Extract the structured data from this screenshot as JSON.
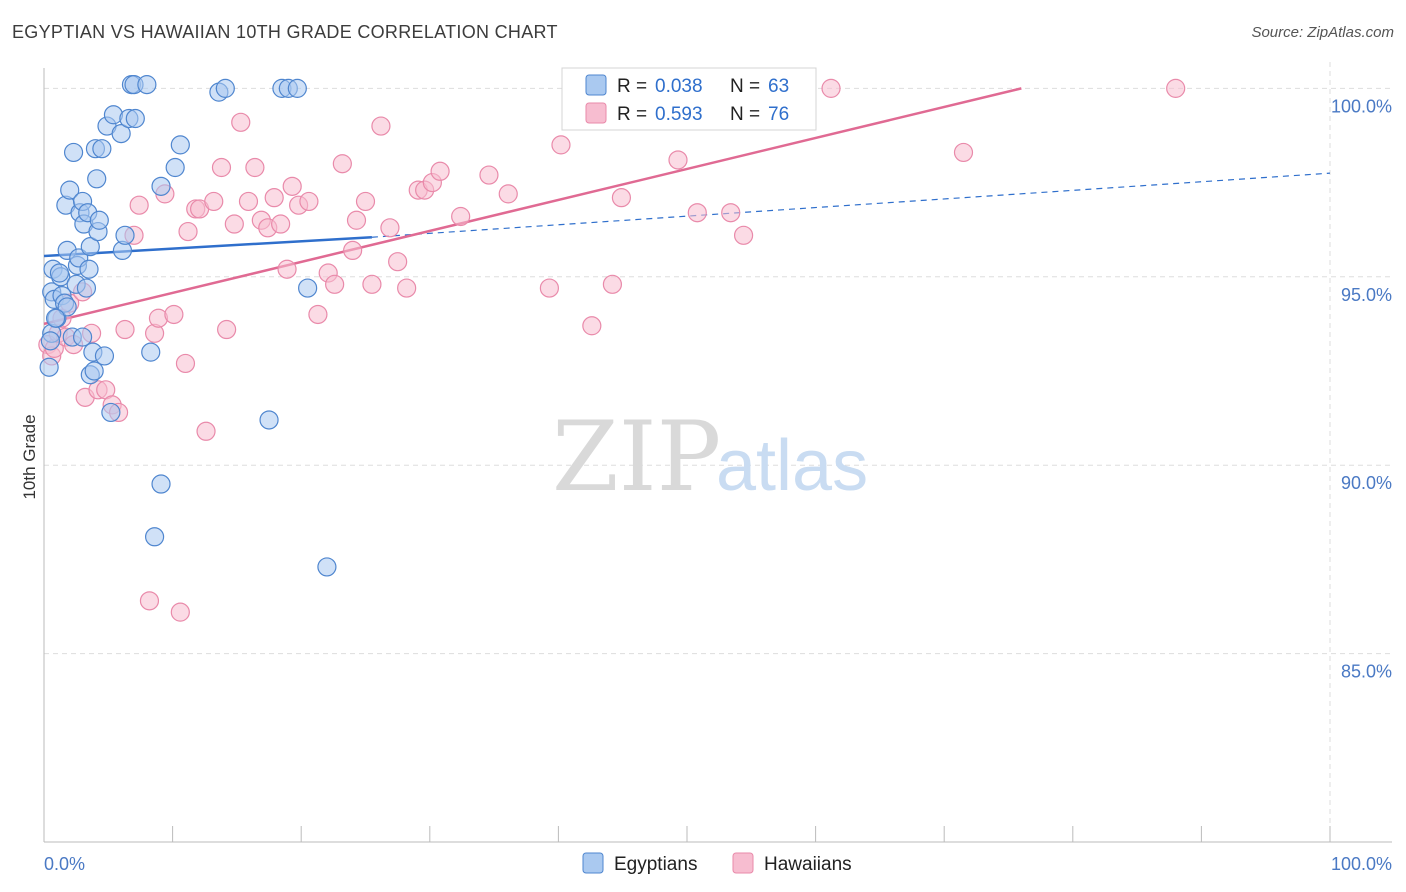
{
  "title": "EGYPTIAN VS HAWAIIAN 10TH GRADE CORRELATION CHART",
  "source": "Source: ZipAtlas.com",
  "watermark": {
    "zip": "ZIP",
    "atlas": "atlas"
  },
  "colors": {
    "egyptians_fill": "#aac9f0",
    "egyptians_stroke": "#4f86cf",
    "egyptians_line": "#2f6fcc",
    "hawaiians_fill": "#f7bdd0",
    "hawaiians_stroke": "#e98aaa",
    "hawaiians_line": "#e06a93",
    "grid": "#dddddd",
    "axis_label": "#4a79c4"
  },
  "legend": {
    "r_label": "R =",
    "n_label": "N =",
    "rows": [
      {
        "series": "Egyptians",
        "r": "0.038",
        "n": "63"
      },
      {
        "series": "Hawaiians",
        "r": "0.593",
        "n": "76"
      }
    ]
  },
  "chart_data": {
    "type": "scatter",
    "title": "EGYPTIAN VS HAWAIIAN 10TH GRADE CORRELATION CHART",
    "xlabel": "",
    "ylabel": "10th Grade",
    "xlim": [
      0,
      100
    ],
    "ylim": [
      80.0,
      100.7
    ],
    "x_tick_labels": [
      "0.0%",
      "100.0%"
    ],
    "y_ticks": [
      {
        "value": 85,
        "label": "85.0%"
      },
      {
        "value": 90,
        "label": "90.0%"
      },
      {
        "value": 95,
        "label": "95.0%"
      },
      {
        "value": 100,
        "label": "100.0%"
      }
    ],
    "legend_position": "top-center",
    "series": [
      {
        "name": "Egyptians",
        "trend": {
          "x": [
            0,
            25.5
          ],
          "y": [
            95.55,
            96.05
          ],
          "extended_x": [
            25.5,
            100
          ],
          "extended_y": [
            96.05,
            97.75
          ]
        },
        "points": [
          [
            0.6,
            93.5
          ],
          [
            0.5,
            93.3
          ],
          [
            0.4,
            92.6
          ],
          [
            0.6,
            94.6
          ],
          [
            0.8,
            94.4
          ],
          [
            0.7,
            95.2
          ],
          [
            1.0,
            93.9
          ],
          [
            1.3,
            95.0
          ],
          [
            1.4,
            94.5
          ],
          [
            1.6,
            94.3
          ],
          [
            1.8,
            94.2
          ],
          [
            1.8,
            95.7
          ],
          [
            1.7,
            96.9
          ],
          [
            2.0,
            97.3
          ],
          [
            2.3,
            98.3
          ],
          [
            2.2,
            93.4
          ],
          [
            2.6,
            95.3
          ],
          [
            2.5,
            94.8
          ],
          [
            2.7,
            95.5
          ],
          [
            2.8,
            96.7
          ],
          [
            3.0,
            97.0
          ],
          [
            3.1,
            96.4
          ],
          [
            3.3,
            94.7
          ],
          [
            3.0,
            93.4
          ],
          [
            3.4,
            96.7
          ],
          [
            3.6,
            95.8
          ],
          [
            3.5,
            95.2
          ],
          [
            3.6,
            92.4
          ],
          [
            3.8,
            93.0
          ],
          [
            3.9,
            92.5
          ],
          [
            4.0,
            98.4
          ],
          [
            4.1,
            97.6
          ],
          [
            4.2,
            96.2
          ],
          [
            4.3,
            96.5
          ],
          [
            4.5,
            98.4
          ],
          [
            4.7,
            92.9
          ],
          [
            4.9,
            99.0
          ],
          [
            5.2,
            91.4
          ],
          [
            5.4,
            99.3
          ],
          [
            6.0,
            98.8
          ],
          [
            6.1,
            95.7
          ],
          [
            6.3,
            96.1
          ],
          [
            6.6,
            99.2
          ],
          [
            7.1,
            99.2
          ],
          [
            6.8,
            100.1
          ],
          [
            7.0,
            100.1
          ],
          [
            8.0,
            100.1
          ],
          [
            8.3,
            93.0
          ],
          [
            8.6,
            88.1
          ],
          [
            9.1,
            89.5
          ],
          [
            9.1,
            97.4
          ],
          [
            10.2,
            97.9
          ],
          [
            10.6,
            98.5
          ],
          [
            13.6,
            99.9
          ],
          [
            14.1,
            100.0
          ],
          [
            18.5,
            100.0
          ],
          [
            19.0,
            100.0
          ],
          [
            19.7,
            100.0
          ],
          [
            17.5,
            91.2
          ],
          [
            20.5,
            94.7
          ],
          [
            22.0,
            87.3
          ],
          [
            1.2,
            95.1
          ],
          [
            0.9,
            93.9
          ]
        ]
      },
      {
        "name": "Hawaiians",
        "trend": {
          "x": [
            0,
            76
          ],
          "y": [
            93.75,
            100.0
          ]
        },
        "points": [
          [
            0.3,
            93.2
          ],
          [
            0.6,
            92.9
          ],
          [
            0.8,
            93.1
          ],
          [
            1.1,
            93.5
          ],
          [
            1.4,
            93.9
          ],
          [
            1.7,
            93.4
          ],
          [
            2.0,
            94.3
          ],
          [
            2.3,
            93.2
          ],
          [
            3.0,
            94.6
          ],
          [
            3.2,
            91.8
          ],
          [
            3.7,
            93.5
          ],
          [
            4.2,
            92.0
          ],
          [
            4.8,
            92.0
          ],
          [
            5.3,
            91.6
          ],
          [
            5.8,
            91.4
          ],
          [
            6.3,
            93.6
          ],
          [
            7.0,
            96.1
          ],
          [
            7.4,
            96.9
          ],
          [
            8.2,
            86.4
          ],
          [
            8.6,
            93.5
          ],
          [
            8.9,
            93.9
          ],
          [
            9.4,
            97.2
          ],
          [
            10.1,
            94.0
          ],
          [
            10.6,
            86.1
          ],
          [
            11.0,
            92.7
          ],
          [
            11.2,
            96.2
          ],
          [
            11.8,
            96.8
          ],
          [
            12.1,
            96.8
          ],
          [
            12.6,
            90.9
          ],
          [
            13.2,
            97.0
          ],
          [
            13.8,
            97.9
          ],
          [
            14.2,
            93.6
          ],
          [
            14.8,
            96.4
          ],
          [
            15.3,
            99.1
          ],
          [
            15.9,
            97.0
          ],
          [
            16.4,
            97.9
          ],
          [
            16.9,
            96.5
          ],
          [
            17.4,
            96.3
          ],
          [
            17.9,
            97.1
          ],
          [
            18.4,
            96.4
          ],
          [
            18.9,
            95.2
          ],
          [
            19.3,
            97.4
          ],
          [
            19.8,
            96.9
          ],
          [
            20.6,
            97.0
          ],
          [
            21.3,
            94.0
          ],
          [
            22.1,
            95.1
          ],
          [
            22.6,
            94.8
          ],
          [
            23.2,
            98.0
          ],
          [
            24.0,
            95.7
          ],
          [
            24.3,
            96.5
          ],
          [
            25.0,
            97.0
          ],
          [
            25.5,
            94.8
          ],
          [
            26.2,
            99.0
          ],
          [
            26.9,
            96.3
          ],
          [
            27.5,
            95.4
          ],
          [
            28.2,
            94.7
          ],
          [
            29.1,
            97.3
          ],
          [
            29.6,
            97.3
          ],
          [
            30.2,
            97.5
          ],
          [
            30.8,
            97.8
          ],
          [
            32.4,
            96.6
          ],
          [
            34.6,
            97.7
          ],
          [
            36.1,
            97.2
          ],
          [
            39.3,
            94.7
          ],
          [
            40.2,
            98.5
          ],
          [
            42.6,
            93.7
          ],
          [
            44.2,
            94.8
          ],
          [
            44.9,
            97.1
          ],
          [
            49.3,
            98.1
          ],
          [
            50.8,
            96.7
          ],
          [
            53.4,
            96.7
          ],
          [
            54.4,
            96.1
          ],
          [
            58.1,
            100.0
          ],
          [
            61.2,
            100.0
          ],
          [
            71.5,
            98.3
          ],
          [
            88.0,
            100.0
          ]
        ]
      }
    ]
  }
}
